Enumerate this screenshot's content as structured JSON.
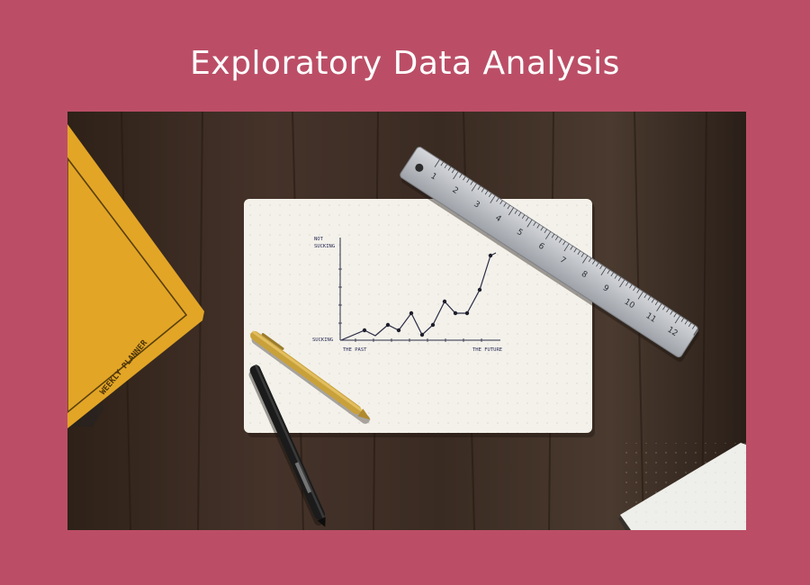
{
  "slide": {
    "title": "Exploratory Data Analysis"
  },
  "photo": {
    "paper_chart": {
      "y_top_label_line1": "NOT",
      "y_top_label_line2": "SUCKING",
      "y_bottom_label": "SUCKING",
      "x_left_label": "THE PAST",
      "x_right_label": "THE FUTURE"
    },
    "planner_label": "WEEKLY PLANNER",
    "ruler_numbers": [
      "1",
      "2",
      "3",
      "4",
      "5",
      "6",
      "7",
      "8",
      "9",
      "10",
      "11",
      "12"
    ],
    "colors": {
      "background": "#bb4e66",
      "desk": "#3a2a1e",
      "paper": "#f3f1ea",
      "planner": "#e2a526",
      "ruler": "#b9bcc1",
      "gold_pen": "#c9a13a",
      "black_pen": "#1b1b1b"
    }
  }
}
